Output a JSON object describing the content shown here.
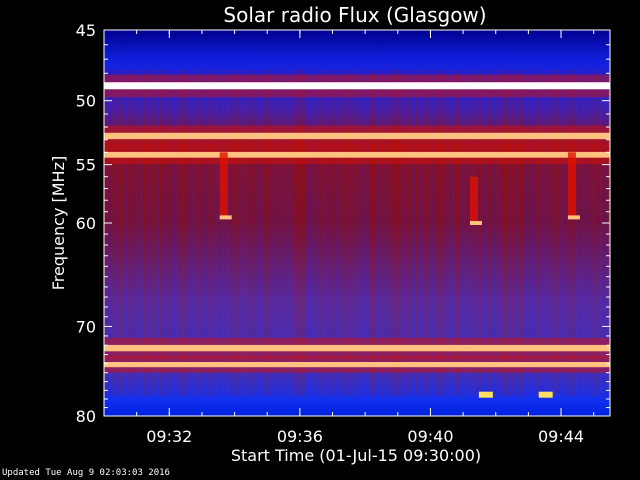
{
  "chart_data": {
    "type": "heatmap",
    "title": "Solar radio Flux (Glasgow)",
    "xlabel": "Start Time (01-Jul-15 09:30:00)",
    "ylabel": "Frequency [MHz]",
    "xlim": [
      "09:30:00",
      "09:45:30"
    ],
    "ylim": [
      45,
      80
    ],
    "y_reversed": true,
    "y_scale": "log",
    "x_ticks": [
      "09:32",
      "09:36",
      "09:40",
      "09:44"
    ],
    "y_ticks": [
      45,
      50,
      55,
      60,
      70,
      80
    ],
    "colormap": [
      "#0000c0",
      "#3020d0",
      "#5a2ca8",
      "#7a1f60",
      "#a01010",
      "#e01000",
      "#ff4000",
      "#ffc080",
      "#ffffff"
    ],
    "features": [
      {
        "kind": "band",
        "freq_mhz": 48.9,
        "intensity": 1.0
      },
      {
        "kind": "band",
        "freq_mhz": 52.7,
        "intensity": 0.85
      },
      {
        "kind": "band",
        "freq_mhz": 54.2,
        "intensity": 0.7
      },
      {
        "kind": "band",
        "freq_mhz": 72.3,
        "intensity": 0.85
      },
      {
        "kind": "band",
        "freq_mhz": 74.1,
        "intensity": 0.55
      },
      {
        "kind": "burst",
        "time": "09:33:40",
        "freq_range_mhz": [
          54,
          59.5
        ]
      },
      {
        "kind": "burst",
        "time": "09:44:20",
        "freq_range_mhz": [
          54,
          59.5
        ]
      },
      {
        "kind": "burst",
        "time": "09:41:20",
        "freq_range_mhz": [
          56,
          60
        ]
      },
      {
        "kind": "spot",
        "time": "09:43:30",
        "freq_mhz": 77.5
      },
      {
        "kind": "spot",
        "time": "09:41:40",
        "freq_mhz": 77.5
      }
    ]
  },
  "footer": {
    "updated_text": "Updated Tue Aug  9 02:03:03 2016"
  }
}
